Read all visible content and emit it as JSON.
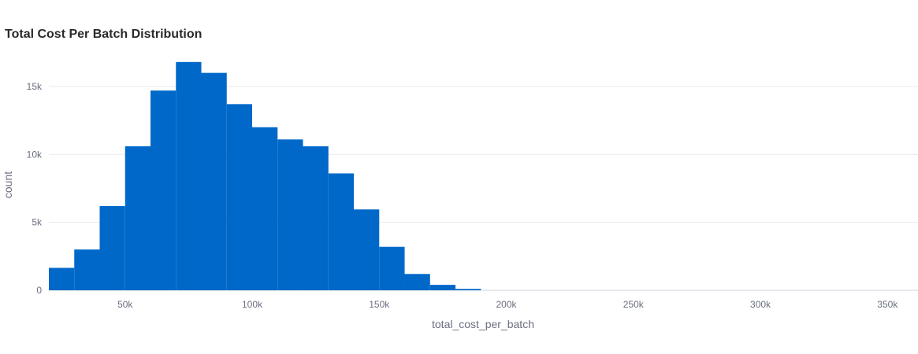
{
  "chart_data": {
    "type": "bar",
    "title": "Total Cost Per Batch Distribution",
    "xlabel": "total_cost_per_batch",
    "ylabel": "count",
    "bin_width": 10000,
    "xlim": [
      20000,
      362000
    ],
    "ylim": [
      0,
      17600
    ],
    "x_ticks": [
      50000,
      100000,
      150000,
      200000,
      250000,
      300000,
      350000
    ],
    "x_tick_labels": [
      "50k",
      "100k",
      "150k",
      "200k",
      "250k",
      "300k",
      "350k"
    ],
    "y_ticks": [
      0,
      5000,
      10000,
      15000
    ],
    "y_tick_labels": [
      "0",
      "5k",
      "10k",
      "15k"
    ],
    "bins_start": [
      20000,
      30000,
      40000,
      50000,
      60000,
      70000,
      80000,
      90000,
      100000,
      110000,
      120000,
      130000,
      140000,
      150000,
      160000,
      170000,
      180000
    ],
    "values": [
      1650,
      3000,
      6200,
      10600,
      14700,
      16800,
      16000,
      13700,
      12000,
      11100,
      10600,
      8600,
      5950,
      3200,
      1200,
      400,
      100
    ],
    "bar_color": "#0068c9",
    "grid": true
  }
}
